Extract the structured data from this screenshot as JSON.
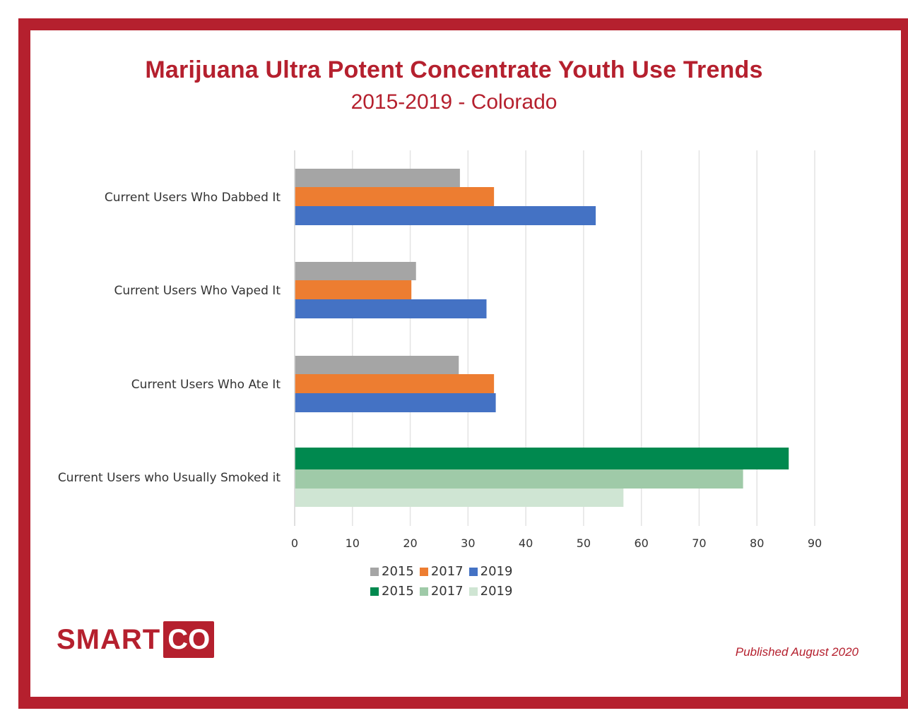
{
  "header": {
    "title": "Marijuana Ultra Potent Concentrate Youth Use Trends",
    "subtitle": "2015-2019 - Colorado"
  },
  "footer": {
    "logo_smart": "SMART",
    "logo_co": "CO",
    "published": "Published August 2020"
  },
  "colors": {
    "frame": "#b5202e",
    "gray": "#a5a5a5",
    "orange": "#ed7d31",
    "blue": "#4472c4",
    "green_dark": "#00894f",
    "green_mid": "#9fcaa8",
    "green_light": "#cfe5d3",
    "grid": "#e3e3e3"
  },
  "chart_data": {
    "type": "bar",
    "orientation": "horizontal",
    "title": "Marijuana Ultra Potent Concentrate Youth Use Trends",
    "subtitle": "2015-2019 - Colorado",
    "xlim": [
      0,
      90
    ],
    "xticks": [
      0,
      10,
      20,
      30,
      40,
      50,
      60,
      70,
      80,
      90
    ],
    "grid": true,
    "legend_position": "bottom",
    "categories": [
      "Current Users Who Dabbed It",
      "Current Users Who Vaped It",
      "Current Users Who Ate It",
      "Current Users who Usually Smoked it"
    ],
    "groups": [
      {
        "category": "Current Users Who Dabbed It",
        "bars": [
          {
            "series": "2015",
            "value": 28.6,
            "color": "#a5a5a5"
          },
          {
            "series": "2017",
            "value": 34.5,
            "color": "#ed7d31"
          },
          {
            "series": "2019",
            "value": 52.1,
            "color": "#4472c4"
          }
        ]
      },
      {
        "category": "Current Users Who Vaped It",
        "bars": [
          {
            "series": "2015",
            "value": 21.0,
            "color": "#a5a5a5"
          },
          {
            "series": "2017",
            "value": 20.2,
            "color": "#ed7d31"
          },
          {
            "series": "2019",
            "value": 33.2,
            "color": "#4472c4"
          }
        ]
      },
      {
        "category": "Current Users Who Ate It",
        "bars": [
          {
            "series": "2015",
            "value": 28.4,
            "color": "#a5a5a5"
          },
          {
            "series": "2017",
            "value": 34.5,
            "color": "#ed7d31"
          },
          {
            "series": "2019",
            "value": 34.8,
            "color": "#4472c4"
          }
        ]
      },
      {
        "category": "Current Users who Usually Smoked it",
        "bars": [
          {
            "series": "2015",
            "value": 85.5,
            "color": "#00894f"
          },
          {
            "series": "2017",
            "value": 77.6,
            "color": "#9fcaa8"
          },
          {
            "series": "2019",
            "value": 56.9,
            "color": "#cfe5d3"
          }
        ]
      }
    ],
    "legend": [
      [
        {
          "label": "2015",
          "color": "#a5a5a5"
        },
        {
          "label": "2017",
          "color": "#ed7d31"
        },
        {
          "label": "2019",
          "color": "#4472c4"
        }
      ],
      [
        {
          "label": "2015",
          "color": "#00894f"
        },
        {
          "label": "2017",
          "color": "#9fcaa8"
        },
        {
          "label": "2019",
          "color": "#cfe5d3"
        }
      ]
    ]
  }
}
